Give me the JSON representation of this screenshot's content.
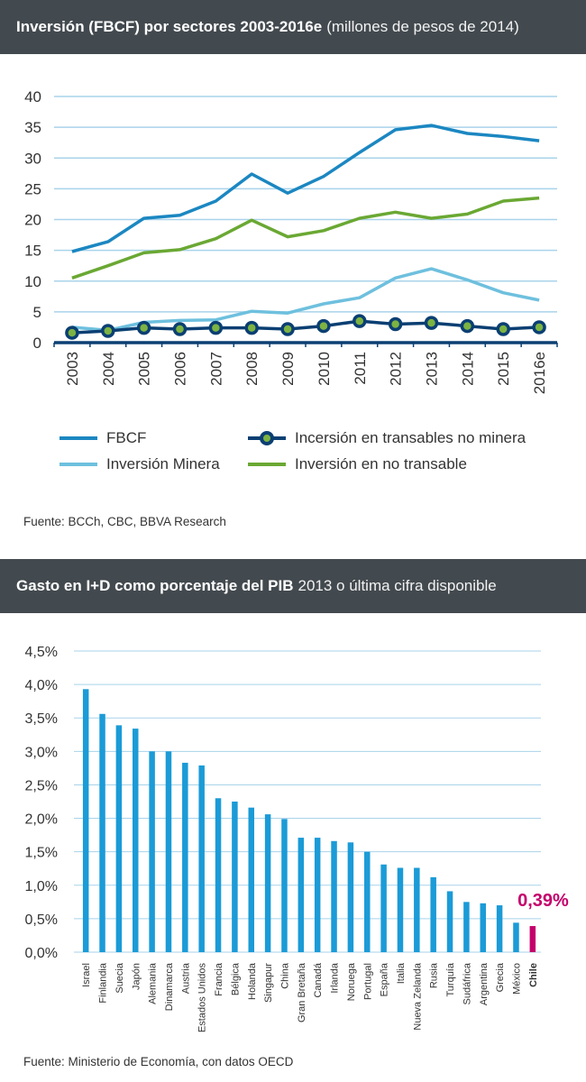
{
  "chart1": {
    "header_bold": "Inversión (FBCF) por sectores 2003-2016e",
    "header_light": "(millones de pesos de 2014)",
    "source": "Fuente: BCCh, CBC, BBVA Research",
    "colors": {
      "fbcf": "#1b87c1",
      "minera": "#6ec0de",
      "transables": "#0b3f73",
      "dot": "#7cb342",
      "notransable": "#6aa833",
      "grid": "#a9d3ea"
    },
    "legend": {
      "fbcf": "FBCF",
      "minera": "Inversión Minera",
      "transables": "Incersión en transables no minera",
      "notransable": "Inversión en no transable"
    }
  },
  "chart2": {
    "header_bold": "Gasto en I+D como porcentaje del PIB",
    "header_light": "2013 o última cifra disponible",
    "source": "Fuente: Ministerio de Economía, con datos OECD",
    "highlight_label": "0,39%",
    "colors": {
      "bar": "#1b9bd7",
      "highlight": "#c4006b",
      "grid": "#a9d3ea"
    }
  },
  "chart_data": [
    {
      "type": "line",
      "title": "Inversión (FBCF) por sectores 2003-2016e",
      "x": [
        "2003",
        "2004",
        "2005",
        "2006",
        "2007",
        "2008",
        "2009",
        "2010",
        "2011",
        "2012",
        "2013",
        "2014",
        "2015",
        "2016e"
      ],
      "ylim": [
        0,
        40
      ],
      "yticks": [
        "0",
        "5",
        "10",
        "15",
        "20",
        "25",
        "30",
        "35",
        "40"
      ],
      "series": [
        {
          "name": "FBCF",
          "key": "fbcf",
          "values": [
            14.8,
            16.4,
            20.2,
            20.7,
            23.0,
            27.4,
            24.3,
            27.0,
            30.9,
            34.6,
            35.3,
            34.0,
            33.5,
            32.8
          ]
        },
        {
          "name": "Inversión Minera",
          "key": "minera",
          "values": [
            2.5,
            2.0,
            3.3,
            3.6,
            3.7,
            5.1,
            4.8,
            6.3,
            7.3,
            10.5,
            12.0,
            10.2,
            8.1,
            6.9
          ]
        },
        {
          "name": "Incersión en transables no minera",
          "key": "transables",
          "values": [
            1.6,
            1.9,
            2.4,
            2.2,
            2.4,
            2.4,
            2.2,
            2.7,
            3.5,
            3.0,
            3.2,
            2.7,
            2.2,
            2.5
          ]
        },
        {
          "name": "Inversión en no transable",
          "key": "notransable",
          "values": [
            10.5,
            12.5,
            14.6,
            15.1,
            16.9,
            19.9,
            17.2,
            18.2,
            20.2,
            21.2,
            20.2,
            20.9,
            23.0,
            23.5
          ]
        }
      ]
    },
    {
      "type": "bar",
      "title": "Gasto en I+D como porcentaje del PIB",
      "categories": [
        "Israel",
        "Finlandia",
        "Suecia",
        "Japón",
        "Alemania",
        "Dinamarca",
        "Austria",
        "Estados Unidos",
        "Francia",
        "Bélgica",
        "Holanda",
        "Singapur",
        "China",
        "Gran Bretaña",
        "Canadá",
        "Irlanda",
        "Noruega",
        "Portugal",
        "España",
        "Italia",
        "Nueva Zelanda",
        "Rusia",
        "Turquía",
        "Sudáfrica",
        "Argentina",
        "Grecia",
        "México",
        "Chile"
      ],
      "values": [
        3.93,
        3.56,
        3.39,
        3.34,
        3.0,
        3.0,
        2.83,
        2.79,
        2.3,
        2.25,
        2.16,
        2.06,
        1.99,
        1.71,
        1.71,
        1.66,
        1.64,
        1.5,
        1.31,
        1.26,
        1.26,
        1.12,
        0.91,
        0.75,
        0.73,
        0.7,
        0.44,
        0.39
      ],
      "highlight": "Chile",
      "ylim": [
        0,
        4.5
      ],
      "yticks": [
        "0,0%",
        "0,5%",
        "1,0%",
        "1,5%",
        "2,0%",
        "2,5%",
        "3,0%",
        "3,5%",
        "4,0%",
        "4,5%"
      ]
    }
  ]
}
